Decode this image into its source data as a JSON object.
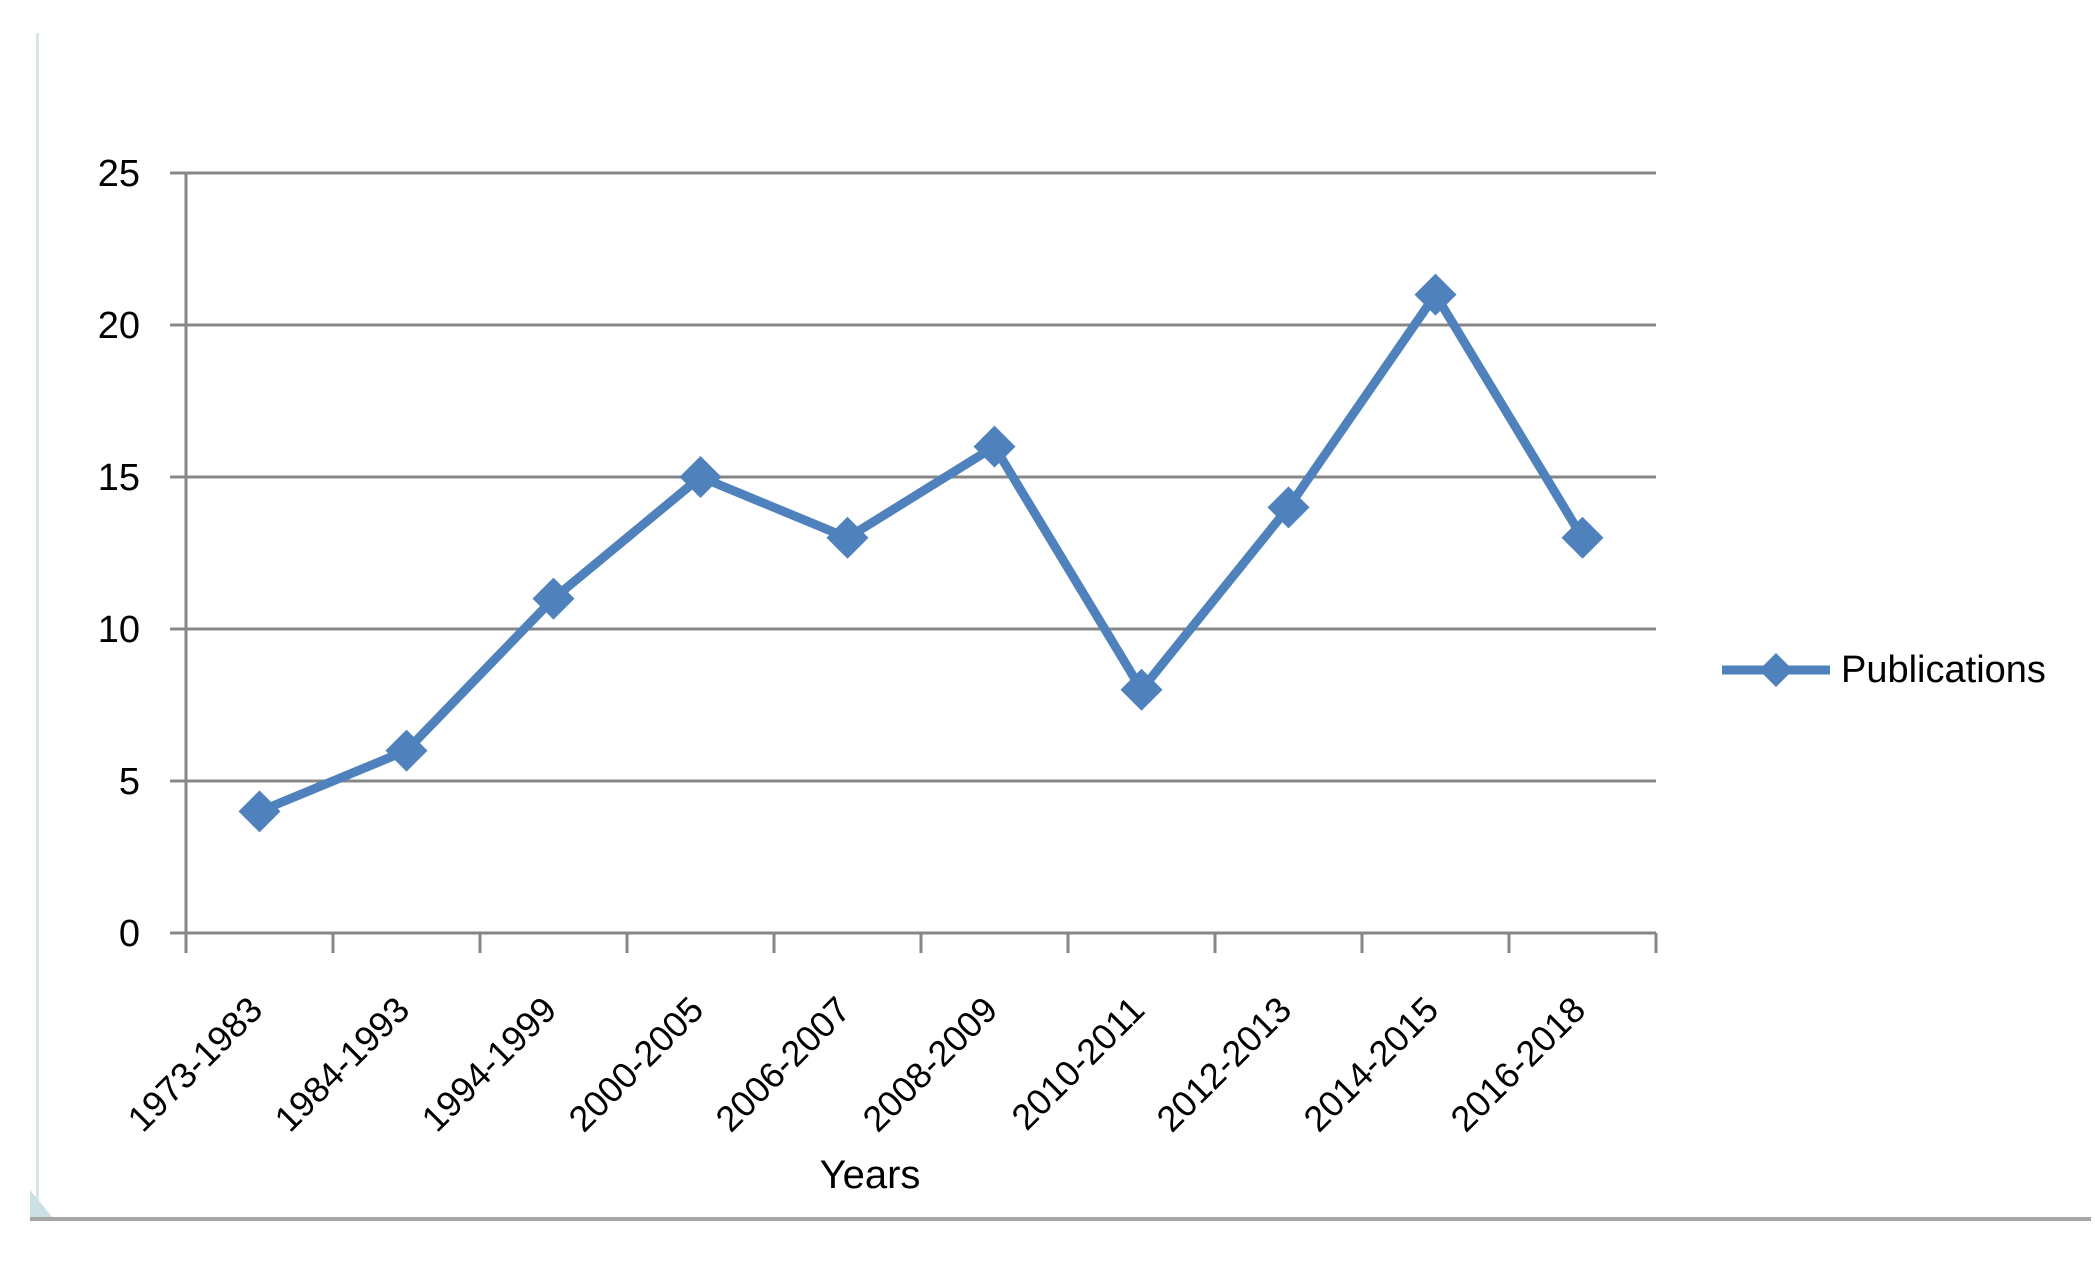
{
  "chart_data": {
    "type": "line",
    "title": "",
    "xlabel": "Years",
    "ylabel": "",
    "categories": [
      "1973-1983",
      "1984-1993",
      "1994-1999",
      "2000-2005",
      "2006-2007",
      "2008-2009",
      "2010-2011",
      "2012-2013",
      "2014-2015",
      "2016-2018"
    ],
    "series": [
      {
        "name": "Publications",
        "values": [
          4,
          6,
          11,
          15,
          13,
          16,
          8,
          14,
          21,
          13
        ]
      }
    ],
    "yticks": [
      0,
      5,
      10,
      15,
      20,
      25
    ],
    "ylim": [
      0,
      25
    ],
    "grid": "horizontal",
    "legend_position": "right",
    "marker": "diamond"
  },
  "colors": {
    "series_line": "#4F81BD",
    "grid_line": "#878787",
    "axis_line": "#878787",
    "tick_label": "#000000",
    "frame_bottom": "#A6A6A6",
    "frame_left": "#D8E6E9",
    "frame_corner": "#CBE0E5",
    "background": "#FFFFFF"
  }
}
